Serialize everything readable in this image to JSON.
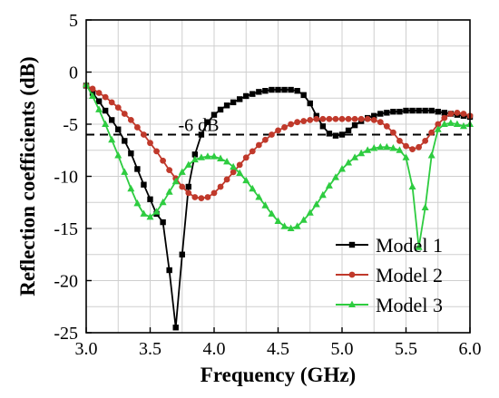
{
  "chart_data": {
    "type": "line",
    "title": "",
    "xlabel": "Frequency (GHz)",
    "ylabel": "Reflection coefficients (dB)",
    "xlim": [
      3.0,
      6.0
    ],
    "ylim": [
      -25,
      5
    ],
    "xticks": [
      3.0,
      3.5,
      4.0,
      4.5,
      5.0,
      5.5,
      6.0
    ],
    "xtick_labels": [
      "3.0",
      "3.5",
      "4.0",
      "4.5",
      "5.0",
      "5.5",
      "6.0"
    ],
    "yticks": [
      5,
      0,
      -5,
      -10,
      -15,
      -20,
      -25
    ],
    "ytick_labels": [
      "5",
      "0",
      "-5",
      "-10",
      "-15",
      "-20",
      "-25"
    ],
    "grid": true,
    "legend_position": "bottom-right",
    "reference_line": {
      "y": -6,
      "label": "-6 dB",
      "style": "dashed"
    },
    "series": [
      {
        "name": "Model 1",
        "color": "#000000",
        "marker": "square",
        "x": [
          3.0,
          3.05,
          3.1,
          3.15,
          3.2,
          3.25,
          3.3,
          3.35,
          3.4,
          3.45,
          3.5,
          3.55,
          3.6,
          3.65,
          3.7,
          3.75,
          3.8,
          3.85,
          3.9,
          3.95,
          4.0,
          4.05,
          4.1,
          4.15,
          4.2,
          4.25,
          4.3,
          4.35,
          4.4,
          4.45,
          4.5,
          4.55,
          4.6,
          4.65,
          4.7,
          4.75,
          4.8,
          4.85,
          4.9,
          4.95,
          5.0,
          5.05,
          5.1,
          5.15,
          5.2,
          5.25,
          5.3,
          5.35,
          5.4,
          5.45,
          5.5,
          5.55,
          5.6,
          5.65,
          5.7,
          5.75,
          5.8,
          5.85,
          5.9,
          5.95,
          6.0
        ],
        "values": [
          -1.3,
          -2.0,
          -2.8,
          -3.7,
          -4.6,
          -5.5,
          -6.6,
          -7.8,
          -9.3,
          -10.8,
          -12.2,
          -13.6,
          -14.4,
          -19.0,
          -24.5,
          -17.5,
          -11.0,
          -7.9,
          -6.0,
          -4.8,
          -4.1,
          -3.6,
          -3.2,
          -2.9,
          -2.6,
          -2.3,
          -2.1,
          -1.9,
          -1.8,
          -1.7,
          -1.7,
          -1.7,
          -1.7,
          -1.8,
          -2.2,
          -3.0,
          -4.2,
          -5.2,
          -5.9,
          -6.1,
          -6.0,
          -5.6,
          -5.1,
          -4.7,
          -4.4,
          -4.2,
          -4.0,
          -3.9,
          -3.8,
          -3.8,
          -3.7,
          -3.7,
          -3.7,
          -3.7,
          -3.7,
          -3.8,
          -3.9,
          -4.0,
          -4.1,
          -4.2,
          -4.3
        ]
      },
      {
        "name": "Model 2",
        "color": "#c0392b",
        "marker": "circle",
        "x": [
          3.0,
          3.05,
          3.1,
          3.15,
          3.2,
          3.25,
          3.3,
          3.35,
          3.4,
          3.45,
          3.5,
          3.55,
          3.6,
          3.65,
          3.7,
          3.75,
          3.8,
          3.85,
          3.9,
          3.95,
          4.0,
          4.05,
          4.1,
          4.15,
          4.2,
          4.25,
          4.3,
          4.35,
          4.4,
          4.45,
          4.5,
          4.55,
          4.6,
          4.65,
          4.7,
          4.75,
          4.8,
          4.85,
          4.9,
          4.95,
          5.0,
          5.05,
          5.1,
          5.15,
          5.2,
          5.25,
          5.3,
          5.35,
          5.4,
          5.45,
          5.5,
          5.55,
          5.6,
          5.65,
          5.7,
          5.75,
          5.8,
          5.85,
          5.9,
          5.95,
          6.0
        ],
        "values": [
          -1.3,
          -1.6,
          -2.0,
          -2.4,
          -2.9,
          -3.4,
          -4.0,
          -4.6,
          -5.3,
          -6.0,
          -6.8,
          -7.6,
          -8.5,
          -9.4,
          -10.2,
          -11.0,
          -11.6,
          -12.0,
          -12.1,
          -12.0,
          -11.6,
          -11.0,
          -10.3,
          -9.6,
          -8.9,
          -8.2,
          -7.6,
          -7.0,
          -6.5,
          -6.0,
          -5.6,
          -5.3,
          -5.0,
          -4.8,
          -4.7,
          -4.6,
          -4.5,
          -4.5,
          -4.5,
          -4.5,
          -4.5,
          -4.5,
          -4.5,
          -4.5,
          -4.5,
          -4.6,
          -4.8,
          -5.2,
          -5.8,
          -6.6,
          -7.1,
          -7.4,
          -7.2,
          -6.6,
          -5.8,
          -5.0,
          -4.4,
          -4.0,
          -3.9,
          -4.0,
          -4.2
        ]
      },
      {
        "name": "Model 3",
        "color": "#2ecc40",
        "marker": "triangle",
        "x": [
          3.0,
          3.05,
          3.1,
          3.15,
          3.2,
          3.25,
          3.3,
          3.35,
          3.4,
          3.45,
          3.5,
          3.55,
          3.6,
          3.65,
          3.7,
          3.75,
          3.8,
          3.85,
          3.9,
          3.95,
          4.0,
          4.05,
          4.1,
          4.15,
          4.2,
          4.25,
          4.3,
          4.35,
          4.4,
          4.45,
          4.5,
          4.55,
          4.6,
          4.65,
          4.7,
          4.75,
          4.8,
          4.85,
          4.9,
          4.95,
          5.0,
          5.05,
          5.1,
          5.15,
          5.2,
          5.25,
          5.3,
          5.35,
          5.4,
          5.45,
          5.5,
          5.55,
          5.6,
          5.65,
          5.7,
          5.75,
          5.8,
          5.85,
          5.9,
          5.95,
          6.0
        ],
        "values": [
          -1.2,
          -2.3,
          -3.6,
          -5.0,
          -6.5,
          -8.0,
          -9.6,
          -11.2,
          -12.6,
          -13.6,
          -13.9,
          -13.4,
          -12.5,
          -11.5,
          -10.5,
          -9.6,
          -8.9,
          -8.4,
          -8.2,
          -8.1,
          -8.1,
          -8.3,
          -8.6,
          -9.1,
          -9.7,
          -10.4,
          -11.2,
          -12.0,
          -12.8,
          -13.6,
          -14.3,
          -14.8,
          -15.0,
          -14.8,
          -14.2,
          -13.5,
          -12.7,
          -11.8,
          -10.9,
          -10.1,
          -9.3,
          -8.7,
          -8.2,
          -7.8,
          -7.5,
          -7.3,
          -7.2,
          -7.2,
          -7.3,
          -7.5,
          -8.2,
          -11.0,
          -16.8,
          -13.0,
          -8.0,
          -5.5,
          -5.0,
          -4.9,
          -5.0,
          -5.2,
          -5.0
        ]
      }
    ]
  }
}
